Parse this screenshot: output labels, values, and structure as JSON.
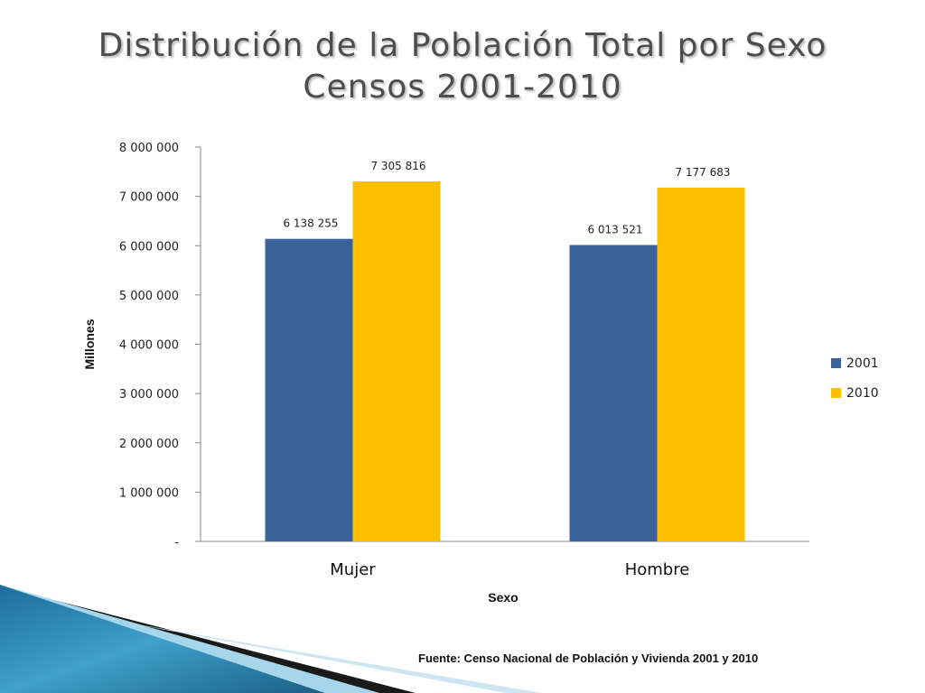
{
  "slide": {
    "title_line1": "Distribución de la Población Total por Sexo",
    "title_line2": "Censos 2001-2010",
    "source": "Fuente: Censo Nacional de Población y Vivienda  2001 y 2010"
  },
  "chart_data": {
    "type": "bar",
    "title": "",
    "xlabel": "Sexo",
    "ylabel": "Millones",
    "categories": [
      "Mujer",
      "Hombre"
    ],
    "series": [
      {
        "name": "2001",
        "color": "#3b6399",
        "values": [
          6138255,
          6013521
        ],
        "labels": [
          "6 138 255",
          "6 013 521"
        ]
      },
      {
        "name": "2010",
        "color": "#fdbf00",
        "values": [
          7305816,
          7177683
        ],
        "labels": [
          "7 305 816",
          "7 177 683"
        ]
      }
    ],
    "ylim": [
      0,
      8000000
    ],
    "yticks": [
      0,
      1000000,
      2000000,
      3000000,
      4000000,
      5000000,
      6000000,
      7000000,
      8000000
    ],
    "ytick_labels": [
      "-",
      "1 000 000",
      "2 000 000",
      "3 000 000",
      "4 000 000",
      "5 000 000",
      "6 000 000",
      "7 000 000",
      "8 000 000"
    ],
    "grid": false,
    "legend": "right"
  }
}
